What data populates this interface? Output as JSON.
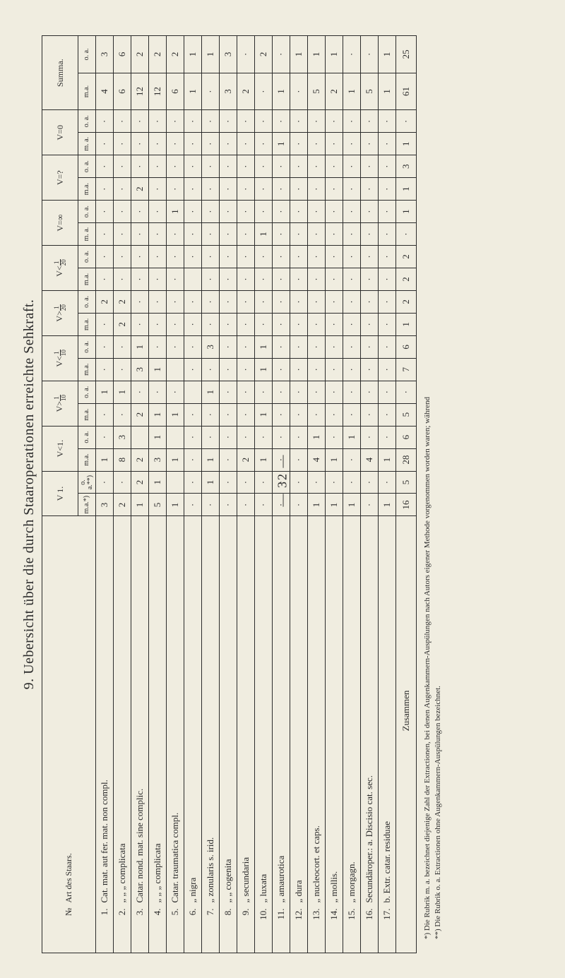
{
  "pagenum": "— 32 —",
  "title": "9. Uebersicht über die durch Staaroperationen erreichte Sehkraft.",
  "header": {
    "no": "№",
    "art": "Art des Staars.",
    "cols": [
      {
        "top": "V 1.",
        "subs": [
          "m.a.*)",
          "o. a.**)"
        ]
      },
      {
        "top": "V<1.",
        "subs": [
          "m.a.",
          "o. a."
        ]
      },
      {
        "top": "V>1/10",
        "subs": [
          "m.a.",
          "o. a."
        ]
      },
      {
        "top": "V<1/10",
        "subs": [
          "m.a.",
          "o. a."
        ]
      },
      {
        "top": "V>1/20",
        "subs": [
          "m.a.",
          "o. a."
        ]
      },
      {
        "top": "V<1/20",
        "subs": [
          "m.a.",
          "o. a."
        ]
      },
      {
        "top": "V=∞",
        "subs": [
          "m. a.",
          "o. a."
        ]
      },
      {
        "top": "V=?",
        "subs": [
          "m.a.",
          "o. a."
        ]
      },
      {
        "top": "V=0",
        "subs": [
          "m. a.",
          "o. a."
        ]
      }
    ],
    "summa": "Summa.",
    "summa_subs": [
      "m.a.",
      "o. a."
    ]
  },
  "rows": [
    {
      "no": "1.",
      "art": "Cat. mat. aut fer. mat. non compl.",
      "v": [
        "3",
        "·",
        "1",
        "·",
        "·",
        "1",
        "·",
        "·",
        "·",
        "2",
        "·",
        "·",
        "·",
        "·",
        "·",
        "·",
        "·",
        "·"
      ],
      "s": [
        "4",
        "3"
      ]
    },
    {
      "no": "2.",
      "art": "„     „     „   complicata",
      "v": [
        "2",
        "·",
        "8",
        "3",
        "·",
        "1",
        "·",
        "·",
        "2",
        "2",
        "·",
        "·",
        "·",
        "·",
        "·",
        "·",
        "·",
        "·"
      ],
      "s": [
        "6",
        "6"
      ]
    },
    {
      "no": "3.",
      "art": "Catar. nond. mat. sine complic.",
      "v": [
        "1",
        "2",
        "2",
        "",
        "2",
        "·",
        "3",
        "1",
        "·",
        "·",
        "·",
        "·",
        "·",
        "·",
        "2",
        "·",
        "·",
        "·"
      ],
      "s": [
        "12",
        "2"
      ]
    },
    {
      "no": "4.",
      "art": "„     „     „   complicata",
      "v": [
        "5",
        "1",
        "3",
        "1",
        "1",
        "·",
        "1",
        "·",
        "·",
        "·",
        "·",
        "·",
        "·",
        "·",
        "·",
        "·",
        "·",
        "·"
      ],
      "s": [
        "12",
        "2"
      ]
    },
    {
      "no": "5.",
      "art": "Catar. traumatica compl.",
      "v": [
        "1",
        "",
        "1",
        "",
        "1",
        "·",
        "",
        "·",
        "·",
        "·",
        "·",
        "·",
        "·",
        "1",
        "·",
        "·",
        "·",
        "·"
      ],
      "s": [
        "6",
        "2"
      ]
    },
    {
      "no": "6.",
      "art": "„    nigra",
      "v": [
        "·",
        "·",
        "·",
        "·",
        "·",
        "",
        "·",
        "·",
        "·",
        "·",
        "",
        "·",
        "·",
        "·",
        "·",
        "·",
        "·",
        "·"
      ],
      "s": [
        "1",
        "1"
      ]
    },
    {
      "no": "7.",
      "art": "„    zonularis s. irid.",
      "v": [
        "·",
        "1",
        "1",
        "·",
        "·",
        "1",
        "·",
        "3",
        "·",
        "·",
        "·",
        "·",
        "·",
        "·",
        "·",
        "·",
        "·",
        "·"
      ],
      "s": [
        "·",
        "1"
      ]
    },
    {
      "no": "8.",
      "art": "„     „    cogenita",
      "v": [
        "·",
        "·",
        "·",
        "·",
        "·",
        "·",
        "·",
        "·",
        "·",
        "·",
        "·",
        "·",
        "·",
        "·",
        "·",
        "·",
        "·",
        "·"
      ],
      "s": [
        "3",
        "3"
      ]
    },
    {
      "no": "9.",
      "art": "„    secundaria",
      "v": [
        "·",
        "·",
        "2",
        "·",
        "·",
        "·",
        "·",
        "·",
        "·",
        "·",
        "·",
        "·",
        "·",
        "·",
        "·",
        "·",
        "·",
        "·"
      ],
      "s": [
        "2",
        "·"
      ]
    },
    {
      "no": "10.",
      "art": "„    luxata",
      "v": [
        "·",
        "·",
        "1",
        "·",
        "1",
        "·",
        "1",
        "1",
        "·",
        "·",
        "·",
        "·",
        "1",
        "·",
        "·",
        "·",
        "·",
        "·"
      ],
      "s": [
        "·",
        "2"
      ]
    },
    {
      "no": "11.",
      "art": "„    amaurotica",
      "v": [
        "·",
        "·",
        "·",
        "·",
        "·",
        "·",
        "·",
        "·",
        "·",
        "·",
        "·",
        "·",
        "·",
        "·",
        "·",
        "·",
        "1",
        "·"
      ],
      "s": [
        "1",
        "·"
      ]
    },
    {
      "no": "12.",
      "art": "„    dura",
      "v": [
        "·",
        "·",
        "·",
        "·",
        "·",
        "·",
        "·",
        "·",
        "·",
        "·",
        "·",
        "·",
        "·",
        "·",
        "·",
        "·",
        "·",
        "·"
      ],
      "s": [
        "·",
        "1"
      ]
    },
    {
      "no": "13.",
      "art": "„    nucleocort. et caps.",
      "v": [
        "1",
        "·",
        "4",
        "1",
        "·",
        "·",
        "·",
        "·",
        "·",
        "·",
        "·",
        "·",
        "·",
        "·",
        "·",
        "·",
        "·",
        "·"
      ],
      "s": [
        "5",
        "1"
      ]
    },
    {
      "no": "14.",
      "art": "„    mollis.",
      "v": [
        "1",
        "·",
        "1",
        "·",
        "·",
        "·",
        "·",
        "·",
        "·",
        "·",
        "·",
        "·",
        "·",
        "·",
        "·",
        "·",
        "·",
        "·"
      ],
      "s": [
        "2",
        "1"
      ]
    },
    {
      "no": "15.",
      "art": "„    morgagn.",
      "v": [
        "1",
        "·",
        "·",
        "1",
        "·",
        "·",
        "·",
        "·",
        "·",
        "·",
        "·",
        "·",
        "·",
        "·",
        "·",
        "·",
        "·",
        "·"
      ],
      "s": [
        "1",
        "·"
      ]
    },
    {
      "no": "16.",
      "art": "Secundäroper.: a. Discisio cat. sec.",
      "v": [
        "·",
        "·",
        "4",
        "·",
        "·",
        "·",
        "·",
        "·",
        "·",
        "·",
        "·",
        "·",
        "·",
        "·",
        "·",
        "·",
        "·",
        "·"
      ],
      "s": [
        "5",
        "·"
      ]
    },
    {
      "no": "17.",
      "art": "b. Extr. catar. residuae",
      "v": [
        "1",
        "·",
        "1",
        "·",
        "·",
        "·",
        "·",
        "·",
        "·",
        "·",
        "·",
        "·",
        "·",
        "·",
        "·",
        "·",
        "·",
        "·"
      ],
      "s": [
        "1",
        "1"
      ]
    }
  ],
  "sumrow": {
    "label": "Zusammen",
    "v": [
      "16",
      "5",
      "28",
      "6",
      "5",
      "·",
      "7",
      "6",
      "1",
      "2",
      "2",
      "2",
      "·",
      "1",
      "1",
      "3",
      "1",
      "·"
    ],
    "s": [
      "61",
      "25"
    ]
  },
  "footnotes": [
    "*) Die Rubrik m. a. bezeichnet diejenige Zahl der Extractionen, bei denen Augenkammern-Auspülungen nach Autors eigener Methode vorgenommen worden waren; während",
    "**) Die Rubrik o. a. Extractionen ohne Augenkammern-Auspülungen bezeichnet."
  ],
  "style": {
    "bg": "#f0ede0",
    "fg": "#2b2b2b",
    "border": "#2b2b2b"
  }
}
